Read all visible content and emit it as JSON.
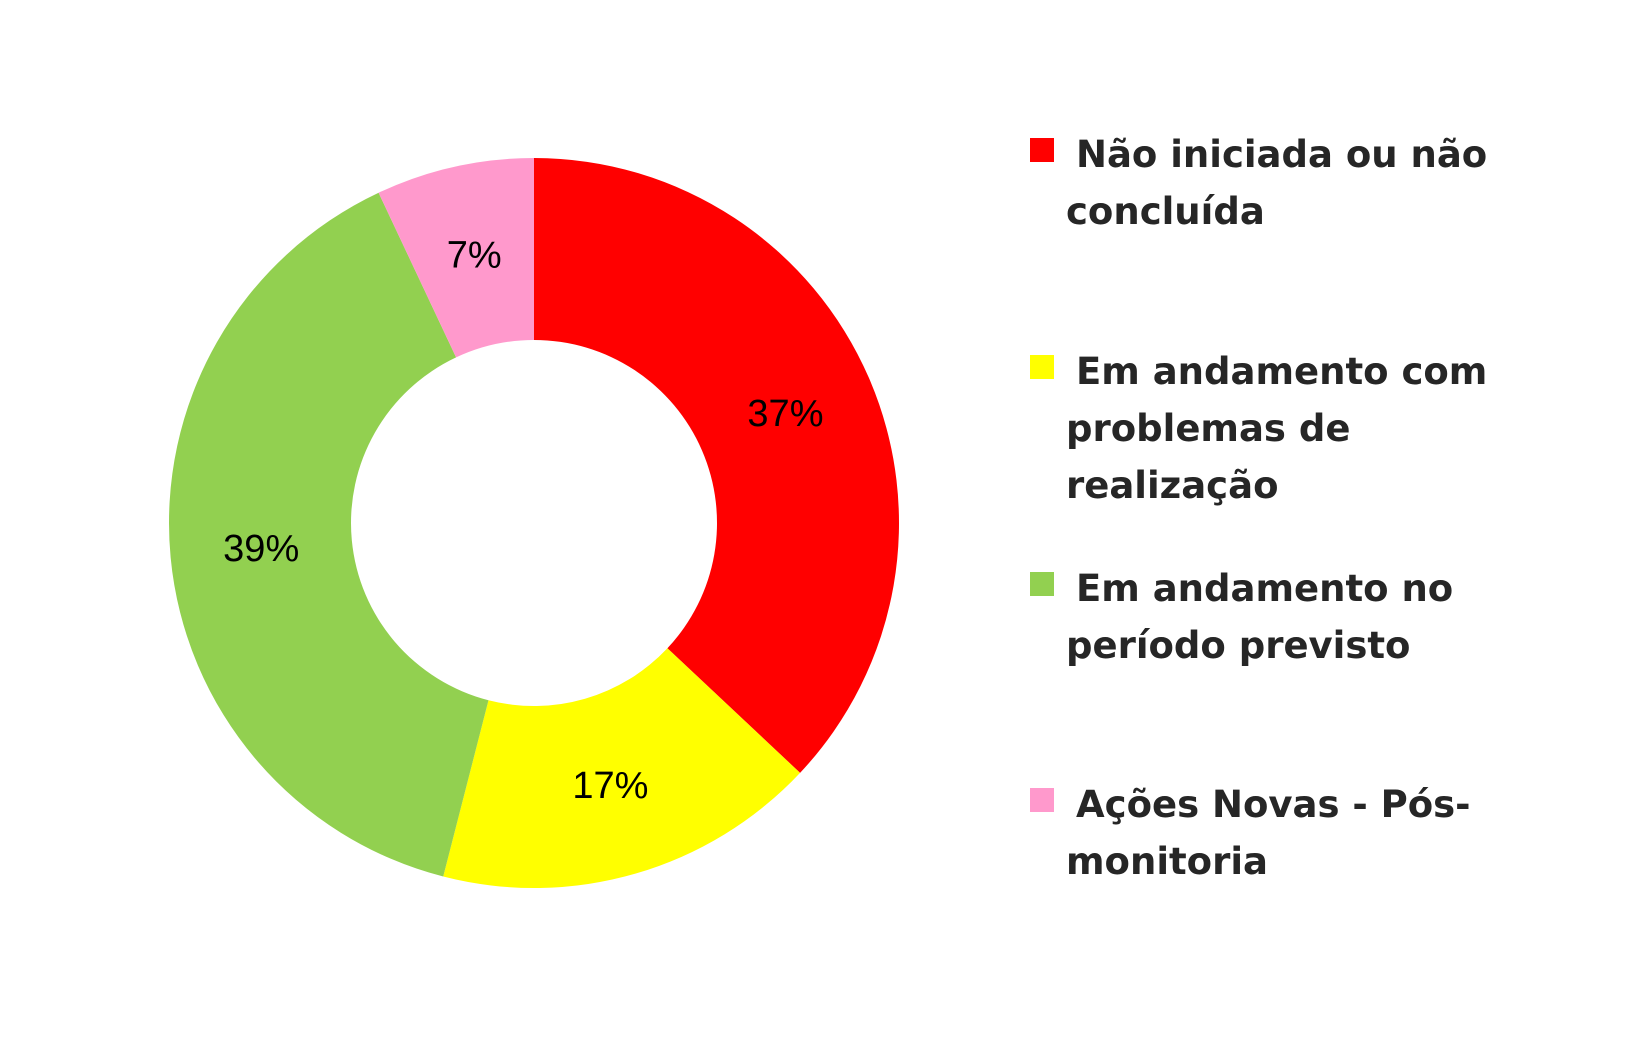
{
  "chart_data": {
    "type": "pie",
    "donut": true,
    "categories": [
      "Não iniciada ou não concluída",
      "Em andamento com problemas de realização",
      "Em andamento no período previsto",
      "Ações Novas - Pós-monitoria"
    ],
    "values": [
      37,
      17,
      39,
      7
    ],
    "labels": [
      "37%",
      "17%",
      "39%",
      "7%"
    ],
    "colors": [
      "#ff0000",
      "#ffff00",
      "#92d050",
      "#ff99cc"
    ],
    "legend_position": "right",
    "title": ""
  },
  "legend": {
    "items": [
      {
        "label": "Não iniciada ou não concluída",
        "color": "#ff0000"
      },
      {
        "label": "Em andamento com problemas de realização",
        "color": "#ffff00"
      },
      {
        "label": "Em andamento no período previsto",
        "color": "#92d050"
      },
      {
        "label": "Ações Novas - Pós-monitoria",
        "color": "#ff99cc"
      }
    ]
  }
}
